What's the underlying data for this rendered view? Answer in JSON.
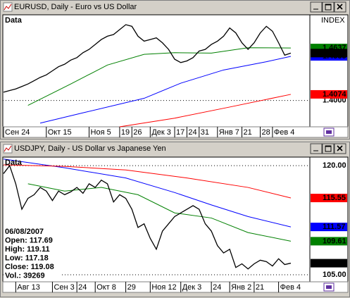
{
  "windows": [
    {
      "title": "EURUSD, Daily - Euro vs US Dollar",
      "panel_label": "Data",
      "index_label": "INDEX",
      "ylim": [
        1.368,
        1.504
      ],
      "xlim": [
        0,
        50
      ],
      "yticks": [
        {
          "value": 1.4,
          "label": "1.4000"
        }
      ],
      "price_labels": [
        {
          "value": 1.4637,
          "label": "1.4637",
          "color": "#008000"
        },
        {
          "value": 1.4535,
          "label": "1.4535",
          "color": "#0000ff"
        },
        {
          "value": 1.4575,
          "label": "1.4575",
          "color": "#000000"
        },
        {
          "value": 1.4074,
          "label": "1.4074",
          "color": "#ff0000"
        }
      ],
      "xticks": [
        {
          "value": 0,
          "label": "Сен 24"
        },
        {
          "value": 7,
          "label": "Окт 15"
        },
        {
          "value": 14,
          "label": "Ноя 5"
        },
        {
          "value": 19,
          "label": "19"
        },
        {
          "value": 21,
          "label": "26"
        },
        {
          "value": 24,
          "label": "Дек 3"
        },
        {
          "value": 28,
          "label": "17"
        },
        {
          "value": 30,
          "label": "24"
        },
        {
          "value": 32,
          "label": "31"
        },
        {
          "value": 35,
          "label": "Янв 7"
        },
        {
          "value": 39,
          "label": "21"
        },
        {
          "value": 42,
          "label": "28"
        },
        {
          "value": 44,
          "label": "Фев 4"
        }
      ],
      "price": {
        "color": "#000000",
        "values": [
          1.41,
          1.412,
          1.414,
          1.417,
          1.42,
          1.424,
          1.428,
          1.431,
          1.436,
          1.441,
          1.444,
          1.449,
          1.452,
          1.458,
          1.462,
          1.468,
          1.474,
          1.478,
          1.48,
          1.486,
          1.492,
          1.49,
          1.478,
          1.472,
          1.474,
          1.476,
          1.47,
          1.462,
          1.45,
          1.446,
          1.448,
          1.452,
          1.46,
          1.462,
          1.468,
          1.472,
          1.478,
          1.488,
          1.482,
          1.47,
          1.462,
          1.47,
          1.482,
          1.49,
          1.484,
          1.47,
          1.455,
          1.4575
        ]
      },
      "averages": [
        {
          "color": "#008000",
          "x": [
            4,
            11,
            17,
            23,
            28,
            34,
            40,
            47
          ],
          "values": [
            1.394,
            1.42,
            1.443,
            1.456,
            1.458,
            1.4575,
            1.464,
            1.4637
          ]
        },
        {
          "color": "#0000ff",
          "x": [
            6,
            13,
            23,
            29,
            36,
            43,
            47
          ],
          "values": [
            1.3725,
            1.385,
            1.4026,
            1.421,
            1.437,
            1.447,
            1.4535
          ]
        },
        {
          "color": "#ff0000",
          "x": [
            19,
            28,
            37,
            47
          ],
          "values": [
            1.368,
            1.3785,
            1.392,
            1.4074
          ]
        }
      ]
    },
    {
      "title": "USDJPY, Daily - US Dollar vs Japanese Yen",
      "panel_label": "Data",
      "ylim": [
        104.03,
        121.17
      ],
      "xlim": [
        0,
        50
      ],
      "yticks": [
        {
          "value": 120,
          "label": "120.00"
        },
        {
          "value": 105,
          "label": "105.00"
        }
      ],
      "price_labels": [
        {
          "value": 115.55,
          "label": "115.55",
          "color": "#ff0000"
        },
        {
          "value": 111.57,
          "label": "111.57",
          "color": "#0000ff"
        },
        {
          "value": 109.61,
          "label": "109.61",
          "color": "#008000"
        },
        {
          "value": 106.59,
          "label": "106.59",
          "color": "#000000"
        }
      ],
      "xticks": [
        {
          "value": 2,
          "label": "Авг 13"
        },
        {
          "value": 8,
          "label": "Сен 3"
        },
        {
          "value": 12,
          "label": "24"
        },
        {
          "value": 15,
          "label": "Окт 8"
        },
        {
          "value": 20,
          "label": "29"
        },
        {
          "value": 24,
          "label": "Ноя 12"
        },
        {
          "value": 29,
          "label": "Дек 3"
        },
        {
          "value": 34,
          "label": "24"
        },
        {
          "value": 37,
          "label": "Янв 2"
        },
        {
          "value": 41,
          "label": "21"
        },
        {
          "value": 45,
          "label": "Фев 4"
        }
      ],
      "price": {
        "color": "#000000",
        "values": [
          118.9,
          120.0,
          117.5,
          114.0,
          115.5,
          116.0,
          117.0,
          116.5,
          115.2,
          116.5,
          116.0,
          116.4,
          117.0,
          116.2,
          117.5,
          117.0,
          118.0,
          117.5,
          115.0,
          116.0,
          115.5,
          114.0,
          111.5,
          112.0,
          110.0,
          108.5,
          111.0,
          112.0,
          113.0,
          113.5,
          114.0,
          114.5,
          114.0,
          112.0,
          111.0,
          109.0,
          108.0,
          108.5,
          106.0,
          106.5,
          105.8,
          106.5,
          107.0,
          106.8,
          106.2,
          107.2,
          106.4,
          106.59
        ]
      },
      "averages": [
        {
          "color": "#0000ff",
          "x": [
            0,
            10,
            20,
            28,
            34,
            40,
            47
          ],
          "values": [
            120.9,
            119.7,
            118.3,
            116.3,
            114.6,
            113.0,
            111.57
          ]
        },
        {
          "color": "#ff0000",
          "x": [
            0,
            10,
            20,
            30,
            40,
            47
          ],
          "values": [
            120.1,
            119.9,
            119.4,
            118.3,
            117.0,
            115.55
          ]
        },
        {
          "color": "#008000",
          "x": [
            4,
            10,
            16,
            22,
            28,
            34,
            40,
            47
          ],
          "values": [
            117.5,
            116.5,
            117.0,
            116.0,
            113.5,
            112.8,
            110.8,
            109.61
          ]
        }
      ],
      "info": [
        "06/08/2007",
        "Open: 117.69",
        "High: 119.11",
        "Low: 117.18",
        "Close: 119.08",
        "Vol.: 39269"
      ]
    }
  ]
}
